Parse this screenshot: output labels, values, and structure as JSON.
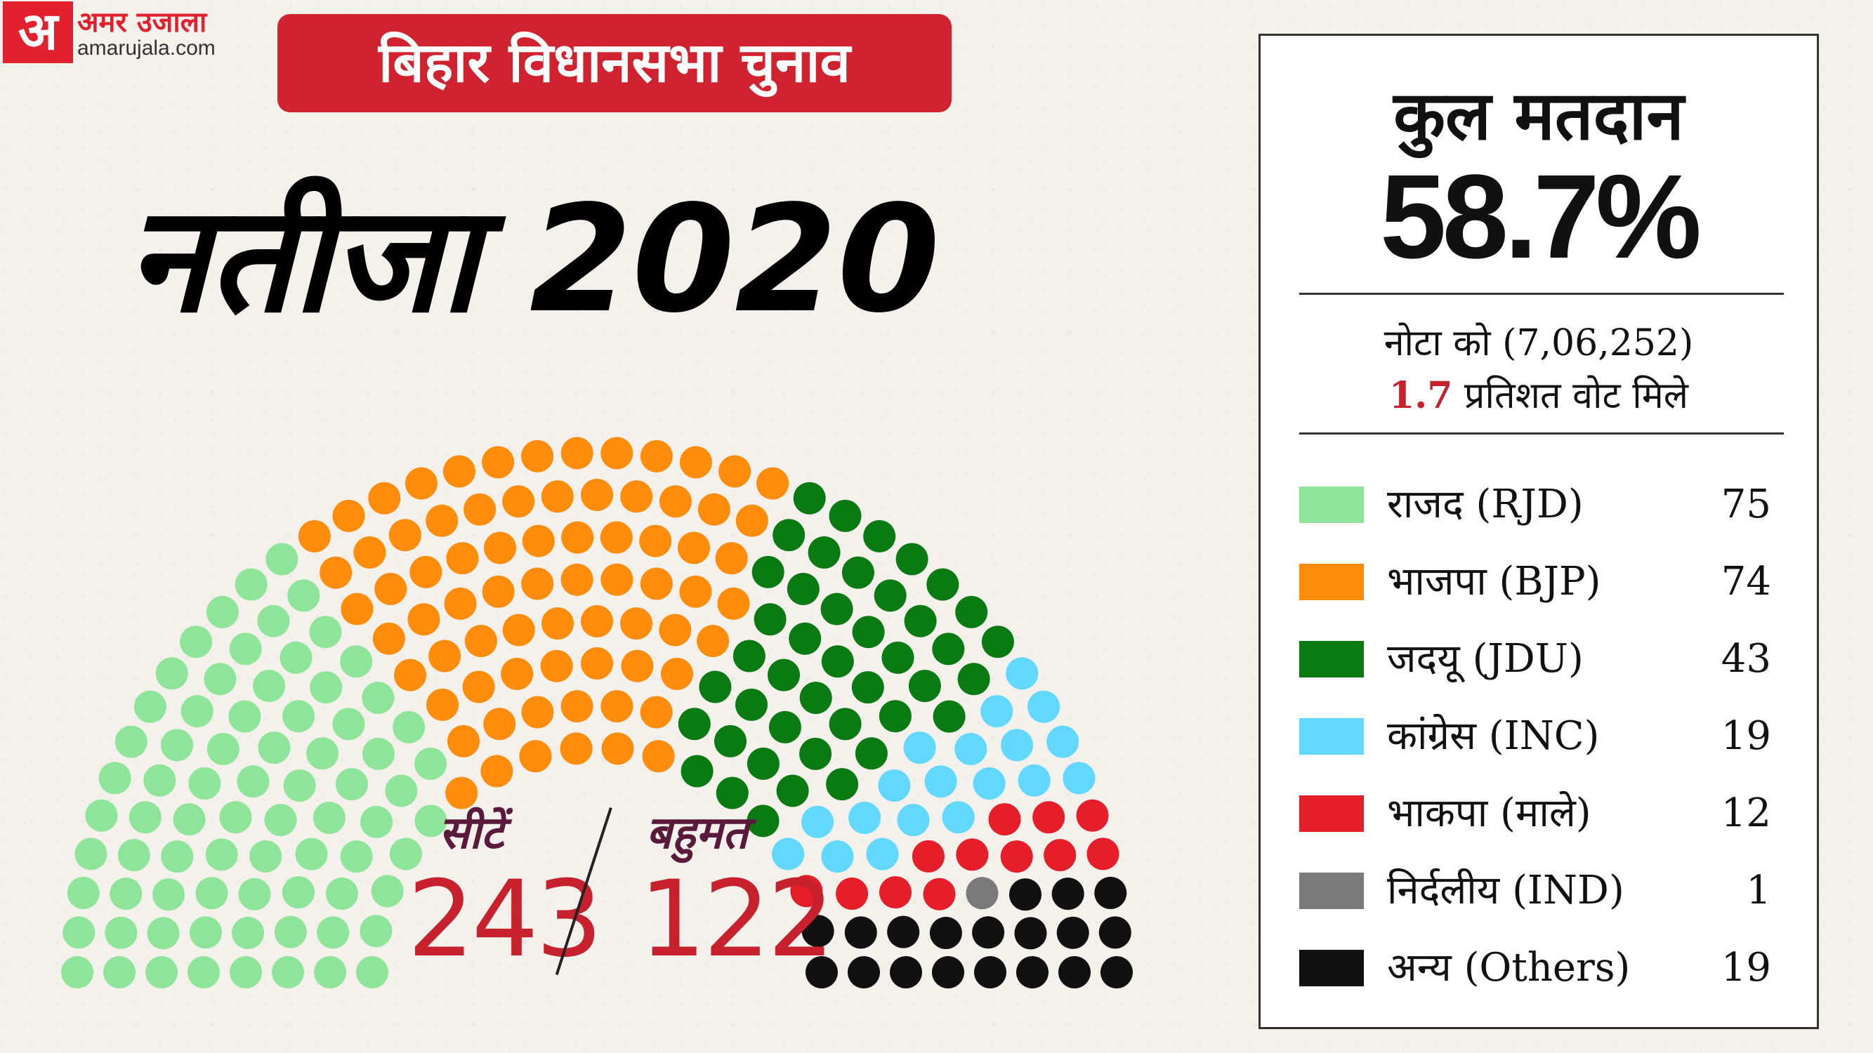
{
  "logo": {
    "mark": "अ",
    "name": "अमर उजाला",
    "url": "amarujala.com"
  },
  "banner": "बिहार विधानसभा चुनाव",
  "title": "नतीजा 2020",
  "turnout": {
    "label": "कुल मतदान",
    "value": "58.7%"
  },
  "nota": {
    "line1": "नोटा को (7,06,252)",
    "pct": "1.7",
    "line2_rest": " प्रतिशत वोट मिले"
  },
  "seats": {
    "label": "सीटें",
    "value": "243"
  },
  "majority": {
    "label": "बहुमत",
    "value": "122"
  },
  "chart_data": {
    "type": "parliament",
    "total": 243,
    "series": [
      {
        "name": "राजद (RJD)",
        "value": 75,
        "color": "#8ee59a"
      },
      {
        "name": "भाजपा (BJP)",
        "value": 74,
        "color": "#ff8c0a"
      },
      {
        "name": "जदयू (JDU)",
        "value": 43,
        "color": "#0a7a12"
      },
      {
        "name": "कांग्रेस (INC)",
        "value": 19,
        "color": "#62d8ff"
      },
      {
        "name": "भाकपा (माले)",
        "value": 12,
        "color": "#e61e2a"
      },
      {
        "name": "निर्दलीय (IND)",
        "value": 1,
        "color": "#7a7a7a"
      },
      {
        "name": "अन्य (Others)",
        "value": 19,
        "color": "#111111"
      }
    ]
  }
}
